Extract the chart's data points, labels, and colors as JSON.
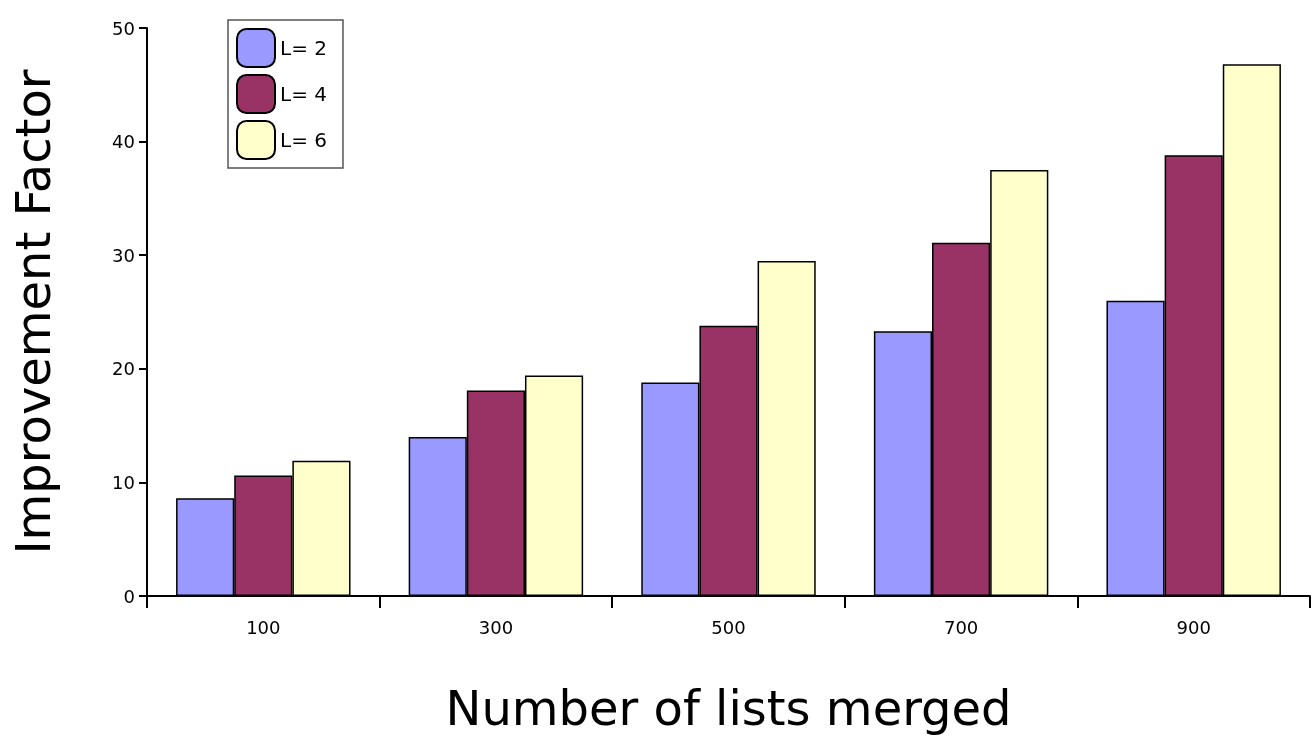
{
  "chart_data": {
    "type": "bar",
    "xlabel": "Number of lists merged",
    "ylabel": "Improvement Factor",
    "categories": [
      "100",
      "300",
      "500",
      "700",
      "900"
    ],
    "series": [
      {
        "name": "L= 2",
        "color": "#9999ff",
        "values": [
          8.6,
          14.0,
          18.8,
          23.3,
          26.0
        ]
      },
      {
        "name": "L= 4",
        "color": "#993366",
        "values": [
          10.6,
          18.1,
          23.8,
          31.1,
          38.8
        ]
      },
      {
        "name": "L= 6",
        "color": "#ffffcc",
        "values": [
          11.9,
          19.4,
          29.5,
          37.5,
          46.8
        ]
      }
    ],
    "ylim": [
      0,
      50
    ],
    "yticks": [
      0,
      10,
      20,
      30,
      40,
      50
    ],
    "grid": false,
    "legend": "top left"
  }
}
